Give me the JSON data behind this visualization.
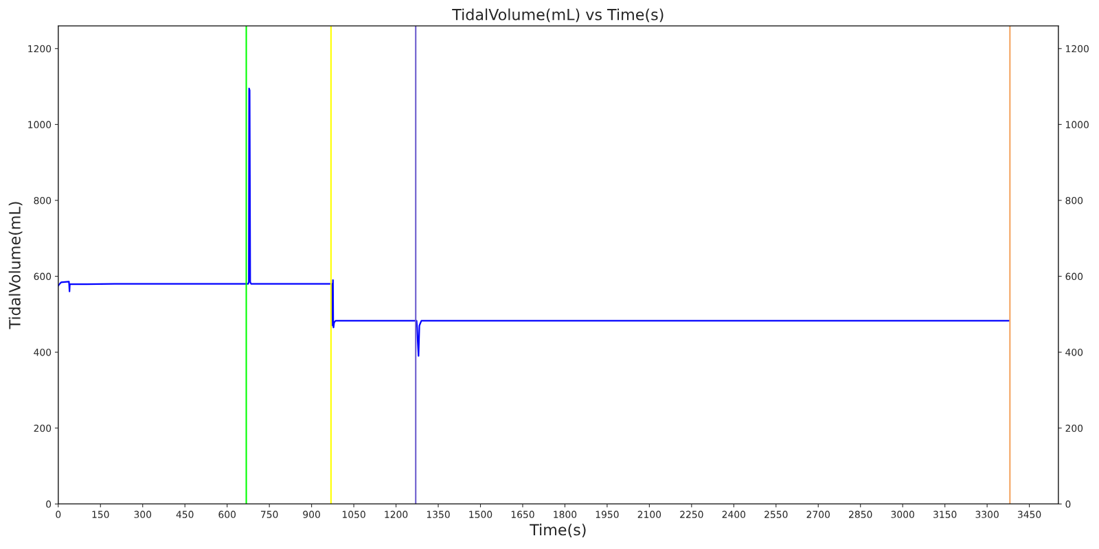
{
  "chart_data": {
    "type": "line",
    "title": "TidalVolume(mL) vs Time(s)",
    "xlabel": "Time(s)",
    "ylabel": "TidalVolume(mL)",
    "series": [
      {
        "color": "#0000ff",
        "x": [
          0,
          5,
          10,
          38,
          39,
          40,
          41,
          43,
          100,
          200,
          400,
          600,
          675,
          677,
          678,
          680,
          682,
          685,
          700,
          900,
          972,
          973,
          975,
          976,
          977,
          978,
          980,
          985,
          1000,
          1200,
          1270,
          1273,
          1275,
          1277,
          1280,
          1283,
          1290,
          1400,
          2000,
          3000,
          3378
        ],
        "values": [
          575,
          580,
          584,
          586,
          575,
          560,
          578,
          579,
          579,
          580,
          580,
          580,
          580,
          585,
          1095,
          1090,
          585,
          580,
          580,
          580,
          580,
          575,
          470,
          590,
          470,
          465,
          478,
          483,
          483,
          483,
          483,
          483,
          465,
          430,
          390,
          470,
          483,
          483,
          483,
          483,
          483
        ]
      }
    ],
    "ref_lines": [
      {
        "axis": "x",
        "value": 668,
        "color": "#00ff00"
      },
      {
        "axis": "x",
        "value": 969,
        "color": "#ffff00"
      },
      {
        "axis": "x",
        "value": 1270,
        "color": "#6a5acd"
      },
      {
        "axis": "x",
        "value": 3381,
        "color": "#f4a460"
      }
    ],
    "xlim": [
      0,
      3553
    ],
    "xticks": [
      0,
      150,
      300,
      450,
      600,
      750,
      900,
      1050,
      1200,
      1350,
      1500,
      1650,
      1800,
      1950,
      2100,
      2250,
      2400,
      2550,
      2700,
      2850,
      3000,
      3150,
      3300,
      3450
    ],
    "ylim": [
      0,
      1260
    ],
    "yticks": [
      0,
      200,
      400,
      600,
      800,
      1000,
      1200
    ],
    "y2lim": [
      0,
      1260
    ],
    "y2ticks": [
      0,
      200,
      400,
      600,
      800,
      1000,
      1200
    ],
    "grid": false,
    "marker": "none",
    "line_style": "solid"
  }
}
